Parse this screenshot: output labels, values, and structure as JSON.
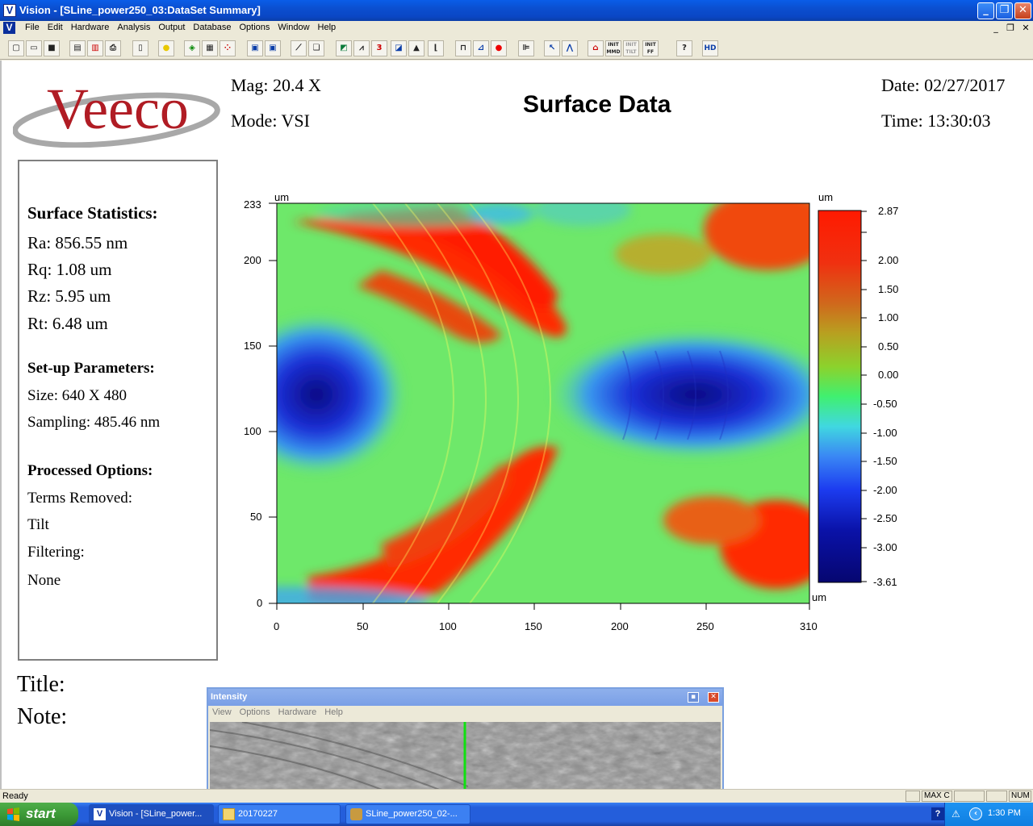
{
  "window": {
    "title": "Vision - [SLine_power250_03:DataSet Summary]",
    "app_letter": "V"
  },
  "menubar": {
    "items": [
      "File",
      "Edit",
      "Hardware",
      "Analysis",
      "Output",
      "Database",
      "Options",
      "Window",
      "Help"
    ]
  },
  "header": {
    "logo_text": "Veeco",
    "mag": "Mag:  20.4 X",
    "mode": "Mode:  VSI",
    "page_title": "Surface Data",
    "date": "Date:  02/27/2017",
    "time": "Time:  13:30:03"
  },
  "stats": {
    "surface_heading": "Surface Statistics:",
    "ra": "Ra:  856.55 nm",
    "rq": "Rq:  1.08 um",
    "rz": "Rz:  5.95 um",
    "rt": "Rt:  6.48 um",
    "setup_heading": "Set-up Parameters:",
    "size": "Size: 640 X 480",
    "sampling": "Sampling:  485.46 nm",
    "processed_heading": "Processed Options:",
    "terms_removed": "Terms Removed:",
    "tilt": "Tilt",
    "filtering": "Filtering:",
    "none": "None"
  },
  "notes": {
    "title_label": "Title:",
    "note_label": "Note:"
  },
  "plot": {
    "y_unit": "um",
    "x_unit": "um",
    "colorbar_unit": "um",
    "y_ticks": [
      "233",
      "200",
      "150",
      "100",
      "50",
      "0"
    ],
    "x_ticks": [
      "0",
      "50",
      "100",
      "150",
      "200",
      "250",
      "310"
    ],
    "colorbar_ticks": [
      "2.87",
      "2.00",
      "1.50",
      "1.00",
      "0.50",
      "0.00",
      "-0.50",
      "-1.00",
      "-1.50",
      "-2.00",
      "-2.50",
      "-3.00",
      "-3.61"
    ]
  },
  "intensity_window": {
    "title": "Intensity",
    "menu": [
      "View",
      "Options",
      "Hardware",
      "Help"
    ]
  },
  "statusbar": {
    "text": "Ready",
    "panel_maxc": "MAX C",
    "panel_num": "NUM"
  },
  "taskbar": {
    "start_label": "start",
    "tasks": [
      "Vision - [SLine_power...",
      "20170227",
      "SLine_power250_02-..."
    ],
    "clock": "1:30 PM"
  },
  "colors": {
    "titlebar": "#0a5de8",
    "taskbar": "#245edb",
    "start": "#3c9a37",
    "logo_red": "#b01c24"
  }
}
